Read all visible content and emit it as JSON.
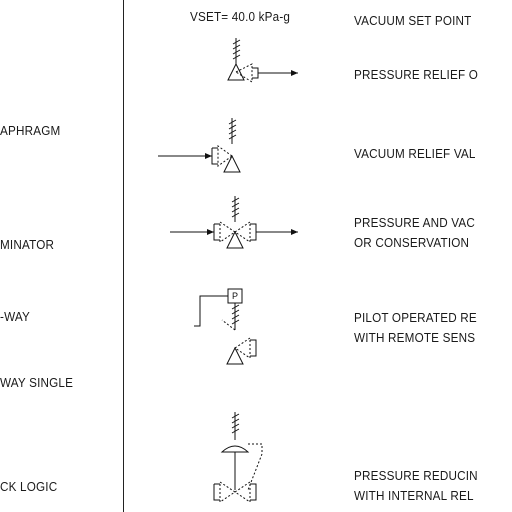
{
  "left_column": {
    "items": [
      "APHRAGM",
      "MINATOR",
      "-WAY",
      "WAY SINGLE",
      "CK LOGIC"
    ]
  },
  "right_column": {
    "top_header": {
      "setpoint": "VSET= 40.0 kPa-g",
      "label_line1": "VACUUM SET POINT"
    },
    "rows": [
      {
        "line1": "PRESSURE RELIEF O",
        "line2": ""
      },
      {
        "line1": "VACUUM RELIEF VAL",
        "line2": ""
      },
      {
        "line1": "PRESSURE AND VAC",
        "line2": "OR CONSERVATION"
      },
      {
        "line1": "PILOT OPERATED RE",
        "line2": "WITH REMOTE SENS"
      },
      {
        "line1": "PRESSURE REDUCIN",
        "line2": "WITH INTERNAL REL"
      }
    ],
    "pilot_box_letter": "P"
  }
}
